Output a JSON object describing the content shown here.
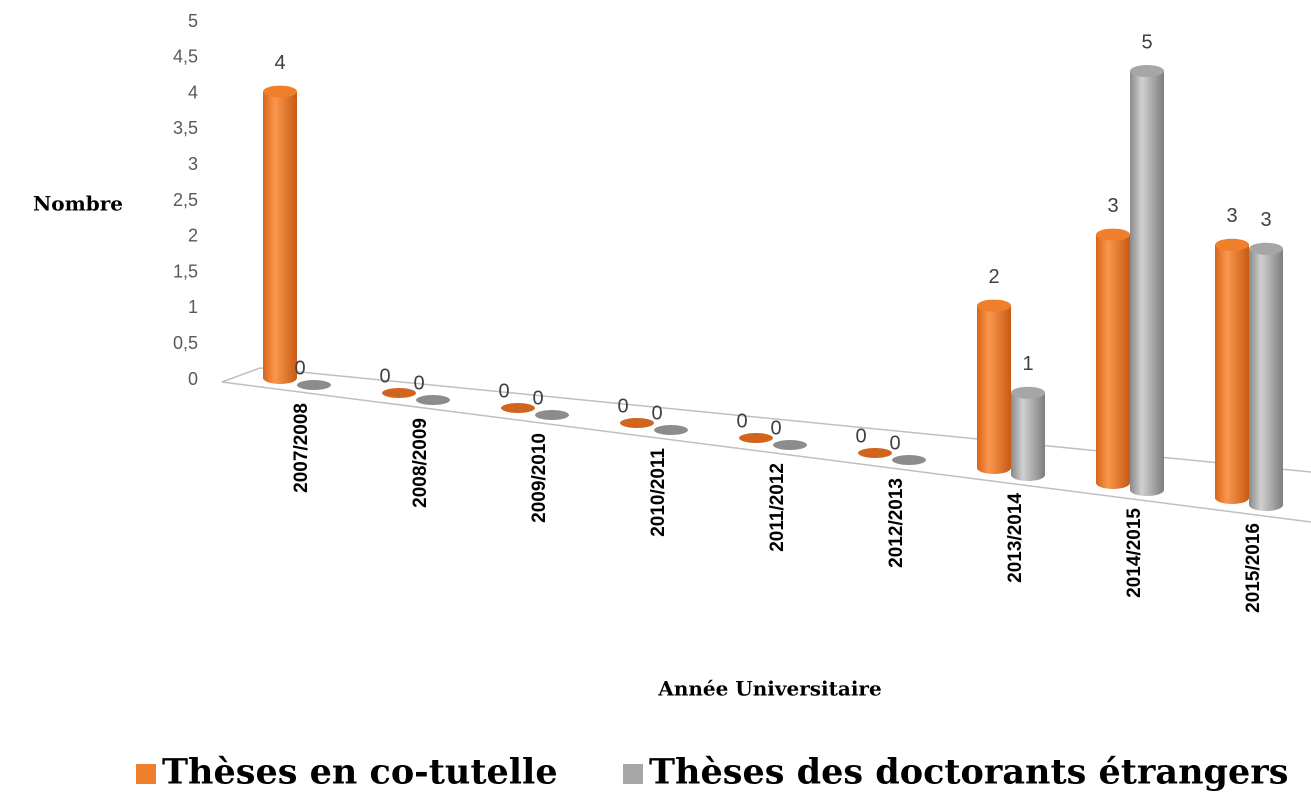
{
  "chart_data": {
    "type": "bar3d",
    "y_axis_label": "Nombre",
    "x_axis_label": "Année Universitaire",
    "categories": [
      "2007/2008",
      "2008/2009",
      "2009/2010",
      "2010/2011",
      "2011/2012",
      "2012/2013",
      "2013/2014",
      "2014/2015",
      "2015/2016"
    ],
    "series": [
      {
        "name": "Thèses en co-tutelle",
        "color": "#f07f2c",
        "values": [
          4,
          0,
          0,
          0,
          0,
          0,
          2,
          3,
          3
        ]
      },
      {
        "name": "Thèses des doctorants étrangers",
        "color": "#a6a6a6",
        "values": [
          0,
          0,
          0,
          0,
          0,
          0,
          1,
          5,
          3
        ]
      }
    ],
    "ylim": [
      0,
      5
    ],
    "yticks": [
      0,
      {
        "value": 0.5,
        "label": "0,5"
      },
      1,
      {
        "value": 1.5,
        "label": "1,5"
      },
      2,
      {
        "value": 2.5,
        "label": "2,5"
      },
      3,
      {
        "value": 3.5,
        "label": "3,5"
      },
      4,
      {
        "value": 4.5,
        "label": "4,5"
      },
      5
    ],
    "legend": "bottom"
  }
}
